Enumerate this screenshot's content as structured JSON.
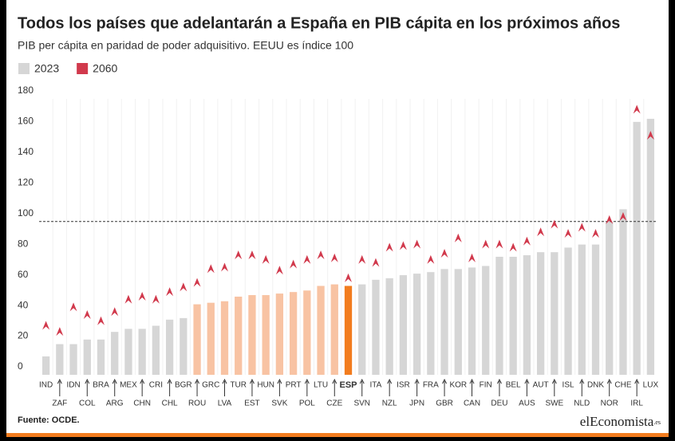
{
  "chart_data": {
    "type": "bar",
    "title": "Todos los países que adelantarán a España en PIB cápita en los próximos años",
    "subtitle": "PIB per cápita en paridad de poder adquisitivo. EEUU es índice 100",
    "categories": [
      "IND",
      "ZAF",
      "IDN",
      "COL",
      "BRA",
      "ARG",
      "MEX",
      "CHN",
      "CRI",
      "CHL",
      "BGR",
      "ROU",
      "GRC",
      "LVA",
      "TUR",
      "EST",
      "HUN",
      "SVK",
      "PRT",
      "POL",
      "LTU",
      "CZE",
      "ESP",
      "SVN",
      "ITA",
      "NZL",
      "ISR",
      "JPN",
      "FRA",
      "GBR",
      "KOR",
      "CAN",
      "FIN",
      "DEU",
      "BEL",
      "AUS",
      "AUT",
      "SWE",
      "ISL",
      "NLD",
      "DNK",
      "NOR",
      "CHE",
      "IRL",
      "LUX"
    ],
    "highlight": "ESP",
    "series": [
      {
        "name": "2023",
        "color": "#d6d6d6",
        "marker": "bar",
        "values": [
          12,
          20,
          20,
          23,
          23,
          28,
          30,
          30,
          32,
          36,
          37,
          46,
          47,
          48,
          51,
          52,
          52,
          53,
          54,
          55,
          58,
          59,
          58,
          59,
          62,
          63,
          65,
          66,
          67,
          69,
          69,
          70,
          71,
          77,
          77,
          78,
          80,
          80,
          83,
          85,
          85,
          100,
          108,
          165,
          167
        ],
        "colors": [
          "#d6d6d6",
          "#d6d6d6",
          "#d6d6d6",
          "#d6d6d6",
          "#d6d6d6",
          "#d6d6d6",
          "#d6d6d6",
          "#d6d6d6",
          "#d6d6d6",
          "#d6d6d6",
          "#d6d6d6",
          "#f8c3a3",
          "#f8c3a3",
          "#f8c3a3",
          "#f8c3a3",
          "#f8c3a3",
          "#f8c3a3",
          "#f8c3a3",
          "#f8c3a3",
          "#f8c3a3",
          "#f8c3a3",
          "#f8c3a3",
          "#f27c1e",
          "#d6d6d6",
          "#d6d6d6",
          "#d6d6d6",
          "#d6d6d6",
          "#d6d6d6",
          "#d6d6d6",
          "#d6d6d6",
          "#d6d6d6",
          "#d6d6d6",
          "#d6d6d6",
          "#d6d6d6",
          "#d6d6d6",
          "#d6d6d6",
          "#d6d6d6",
          "#d6d6d6",
          "#d6d6d6",
          "#d6d6d6",
          "#d6d6d6",
          "#d6d6d6",
          "#d6d6d6",
          "#d6d6d6",
          "#d6d6d6"
        ]
      },
      {
        "name": "2060",
        "color": "#d1394c",
        "marker": "caret",
        "values": [
          32,
          28,
          44,
          39,
          35,
          41,
          49,
          51,
          49,
          54,
          57,
          60,
          69,
          70,
          78,
          78,
          75,
          68,
          72,
          75,
          78,
          76,
          63,
          75,
          73,
          83,
          84,
          85,
          75,
          79,
          89,
          76,
          85,
          85,
          83,
          87,
          93,
          98,
          92,
          96,
          92,
          101,
          103,
          173,
          156
        ]
      }
    ],
    "ylim": [
      0,
      180
    ],
    "yticks": [
      0,
      20,
      40,
      60,
      80,
      100,
      120,
      140,
      160,
      180
    ],
    "reference_line": 100,
    "grid": true,
    "source": "Fuente: OCDE.",
    "brand": "elEconomista",
    "brand_suffix": ".es"
  }
}
